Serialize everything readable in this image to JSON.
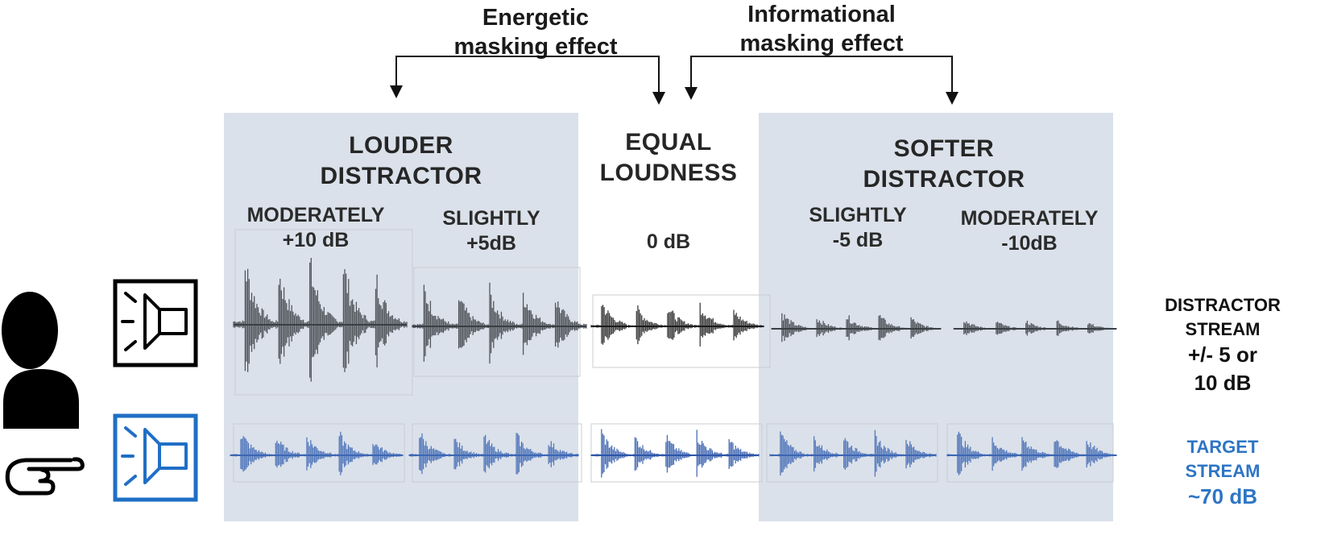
{
  "masking": {
    "energetic_line1": "Energetic",
    "energetic_line2": "masking effect",
    "informational_line1": "Informational",
    "informational_line2": "masking effect"
  },
  "sections": {
    "louder_line1": "LOUDER",
    "louder_line2": "DISTRACTOR",
    "equal_line1": "EQUAL",
    "equal_line2": "LOUDNESS",
    "softer_line1": "SOFTER",
    "softer_line2": "DISTRACTOR"
  },
  "levels": {
    "mod_louder_name": "MODERATELY",
    "mod_louder_db": "+10 dB",
    "sl_louder_name": "SLIGHTLY",
    "sl_louder_db": "+5dB",
    "equal_db": "0 dB",
    "sl_softer_name": "SLIGHTLY",
    "sl_softer_db": "-5 dB",
    "mod_softer_name": "MODERATELY",
    "mod_softer_db": "-10dB"
  },
  "streams": {
    "distractor_line1": "DISTRACTOR",
    "distractor_line2": "STREAM",
    "distractor_line3": "+/- 5 or",
    "distractor_line4": "10 dB",
    "target_line1": "TARGET",
    "target_line2": "STREAM",
    "target_line3": "~70 dB"
  },
  "colors": {
    "panel": "#dbe1ea",
    "distractor_wave": "#3a3f45",
    "target_wave": "#3c66b3",
    "target_icon": "#1f6fc5"
  },
  "icons": [
    "person-icon",
    "pointing-hand-icon",
    "distractor-speaker-icon",
    "target-speaker-icon"
  ]
}
